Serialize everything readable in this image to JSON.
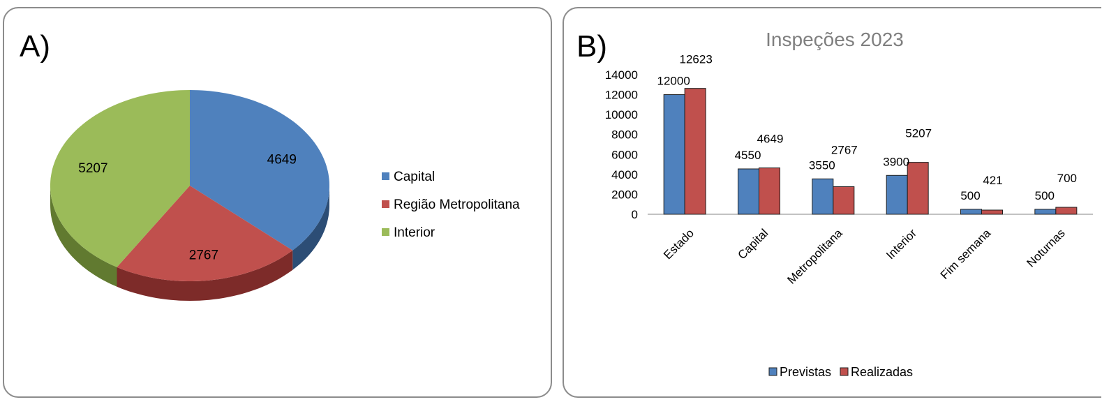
{
  "panels": {
    "a_label": "A)",
    "b_label": "B)"
  },
  "chart_data": [
    {
      "type": "pie",
      "title": "",
      "slices": [
        {
          "label": "Capital",
          "value": 4649,
          "color": "#4f81bd",
          "side_color": "#2c4d75"
        },
        {
          "label": "Região Metropolitana",
          "value": 2767,
          "color": "#c0504d",
          "side_color": "#7d2b29"
        },
        {
          "label": "Interior",
          "value": 5207,
          "color": "#9bbb59",
          "side_color": "#617a30"
        }
      ],
      "data_labels": [
        "4649",
        "2767",
        "5207"
      ],
      "legend": {
        "placement": "right",
        "entries": [
          "Capital",
          "Região Metropolitana",
          "Interior"
        ]
      },
      "style": "3d"
    },
    {
      "type": "bar",
      "title": "Inspeções 2023",
      "categories": [
        "Estado",
        "Capital",
        "Metropolitana",
        "Interior",
        "Fim semana",
        "Noturnas"
      ],
      "series": [
        {
          "name": "Previstas",
          "values": [
            12000,
            4550,
            3550,
            3900,
            500,
            500
          ],
          "color": "#4f81bd"
        },
        {
          "name": "Realizadas",
          "values": [
            12623,
            4649,
            2767,
            5207,
            421,
            700
          ],
          "color": "#c0504d"
        }
      ],
      "ylim": [
        0,
        14000
      ],
      "yticks": [
        "0",
        "2000",
        "4000",
        "6000",
        "8000",
        "10000",
        "12000",
        "14000"
      ],
      "grid": false,
      "legend": {
        "placement": "bottom",
        "entries": [
          "Previstas",
          "Realizadas"
        ]
      }
    }
  ]
}
